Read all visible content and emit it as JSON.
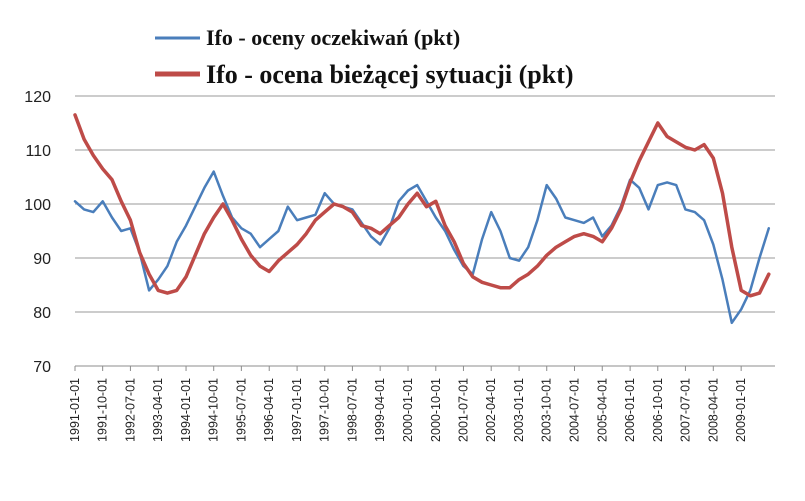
{
  "chart_data": {
    "type": "line",
    "title": "",
    "xlabel": "",
    "ylabel": "",
    "ylim": [
      70,
      120
    ],
    "yticks": [
      70,
      80,
      90,
      100,
      110,
      120
    ],
    "grid": true,
    "legend_position": "top",
    "x_tick_labels": [
      "1991-01-01",
      "1991-10-01",
      "1992-07-01",
      "1993-04-01",
      "1994-01-01",
      "1994-10-01",
      "1995-07-01",
      "1996-04-01",
      "1997-01-01",
      "1997-10-01",
      "1998-07-01",
      "1999-04-01",
      "2000-01-01",
      "2000-10-01",
      "2001-07-01",
      "2002-04-01",
      "2003-01-01",
      "2003-10-01",
      "2004-07-01",
      "2005-04-01",
      "2006-01-01",
      "2006-10-01",
      "2007-07-01",
      "2008-04-01",
      "2009-01-01"
    ],
    "series": [
      {
        "name": "Ifo - oceny oczekiwań (pkt)",
        "color": "#4a7ebb",
        "points": [
          [
            "1991-01-01",
            100.5
          ],
          [
            "1991-04-01",
            99.0
          ],
          [
            "1991-07-01",
            98.5
          ],
          [
            "1991-10-01",
            100.5
          ],
          [
            "1992-01-01",
            97.5
          ],
          [
            "1992-04-01",
            95.0
          ],
          [
            "1992-07-01",
            95.5
          ],
          [
            "1992-10-01",
            91.0
          ],
          [
            "1993-01-01",
            84.0
          ],
          [
            "1993-04-01",
            86.0
          ],
          [
            "1993-07-01",
            88.5
          ],
          [
            "1993-10-01",
            93.0
          ],
          [
            "1994-01-01",
            96.0
          ],
          [
            "1994-04-01",
            99.5
          ],
          [
            "1994-07-01",
            103.0
          ],
          [
            "1994-10-01",
            106.0
          ],
          [
            "1995-01-01",
            101.5
          ],
          [
            "1995-04-01",
            97.5
          ],
          [
            "1995-07-01",
            95.5
          ],
          [
            "1995-10-01",
            94.5
          ],
          [
            "1996-01-01",
            92.0
          ],
          [
            "1996-04-01",
            93.5
          ],
          [
            "1996-07-01",
            95.0
          ],
          [
            "1996-10-01",
            99.5
          ],
          [
            "1997-01-01",
            97.0
          ],
          [
            "1997-04-01",
            97.5
          ],
          [
            "1997-07-01",
            98.0
          ],
          [
            "1997-10-01",
            102.0
          ],
          [
            "1998-01-01",
            100.0
          ],
          [
            "1998-04-01",
            99.5
          ],
          [
            "1998-07-01",
            99.0
          ],
          [
            "1998-10-01",
            96.5
          ],
          [
            "1999-01-01",
            94.0
          ],
          [
            "1999-04-01",
            92.5
          ],
          [
            "1999-07-01",
            95.5
          ],
          [
            "1999-10-01",
            100.5
          ],
          [
            "2000-01-01",
            102.5
          ],
          [
            "2000-04-01",
            103.5
          ],
          [
            "2000-07-01",
            100.5
          ],
          [
            "2000-10-01",
            97.5
          ],
          [
            "2001-01-01",
            95.0
          ],
          [
            "2001-04-01",
            91.5
          ],
          [
            "2001-07-01",
            88.5
          ],
          [
            "2001-10-01",
            87.0
          ],
          [
            "2002-01-01",
            93.5
          ],
          [
            "2002-04-01",
            98.5
          ],
          [
            "2002-07-01",
            95.0
          ],
          [
            "2002-10-01",
            90.0
          ],
          [
            "2003-01-01",
            89.5
          ],
          [
            "2003-04-01",
            92.0
          ],
          [
            "2003-07-01",
            97.0
          ],
          [
            "2003-10-01",
            103.5
          ],
          [
            "2004-01-01",
            101.0
          ],
          [
            "2004-04-01",
            97.5
          ],
          [
            "2004-07-01",
            97.0
          ],
          [
            "2004-10-01",
            96.5
          ],
          [
            "2005-01-01",
            97.5
          ],
          [
            "2005-04-01",
            94.0
          ],
          [
            "2005-07-01",
            96.0
          ],
          [
            "2005-10-01",
            99.5
          ],
          [
            "2006-01-01",
            104.5
          ],
          [
            "2006-04-01",
            103.0
          ],
          [
            "2006-07-01",
            99.0
          ],
          [
            "2006-10-01",
            103.5
          ],
          [
            "2007-01-01",
            104.0
          ],
          [
            "2007-04-01",
            103.5
          ],
          [
            "2007-07-01",
            99.0
          ],
          [
            "2007-10-01",
            98.5
          ],
          [
            "2008-01-01",
            97.0
          ],
          [
            "2008-04-01",
            92.5
          ],
          [
            "2008-07-01",
            86.0
          ],
          [
            "2008-10-01",
            78.0
          ],
          [
            "2009-01-01",
            80.5
          ],
          [
            "2009-04-01",
            84.0
          ],
          [
            "2009-07-01",
            90.0
          ],
          [
            "2009-10-01",
            95.5
          ]
        ]
      },
      {
        "name": "Ifo - ocena bieżącej sytuacji (pkt)",
        "color": "#be4b48",
        "points": [
          [
            "1991-01-01",
            116.5
          ],
          [
            "1991-04-01",
            112.0
          ],
          [
            "1991-07-01",
            109.0
          ],
          [
            "1991-10-01",
            106.5
          ],
          [
            "1992-01-01",
            104.5
          ],
          [
            "1992-04-01",
            100.5
          ],
          [
            "1992-07-01",
            97.0
          ],
          [
            "1992-10-01",
            91.0
          ],
          [
            "1993-01-01",
            87.0
          ],
          [
            "1993-04-01",
            84.0
          ],
          [
            "1993-07-01",
            83.5
          ],
          [
            "1993-10-01",
            84.0
          ],
          [
            "1994-01-01",
            86.5
          ],
          [
            "1994-04-01",
            90.5
          ],
          [
            "1994-07-01",
            94.5
          ],
          [
            "1994-10-01",
            97.5
          ],
          [
            "1995-01-01",
            100.0
          ],
          [
            "1995-04-01",
            97.0
          ],
          [
            "1995-07-01",
            93.5
          ],
          [
            "1995-10-01",
            90.5
          ],
          [
            "1996-01-01",
            88.5
          ],
          [
            "1996-04-01",
            87.5
          ],
          [
            "1996-07-01",
            89.5
          ],
          [
            "1996-10-01",
            91.0
          ],
          [
            "1997-01-01",
            92.5
          ],
          [
            "1997-04-01",
            94.5
          ],
          [
            "1997-07-01",
            97.0
          ],
          [
            "1997-10-01",
            98.5
          ],
          [
            "1998-01-01",
            100.0
          ],
          [
            "1998-04-01",
            99.5
          ],
          [
            "1998-07-01",
            98.5
          ],
          [
            "1998-10-01",
            96.0
          ],
          [
            "1999-01-01",
            95.5
          ],
          [
            "1999-04-01",
            94.5
          ],
          [
            "1999-07-01",
            96.0
          ],
          [
            "1999-10-01",
            97.5
          ],
          [
            "2000-01-01",
            100.0
          ],
          [
            "2000-04-01",
            102.0
          ],
          [
            "2000-07-01",
            99.5
          ],
          [
            "2000-10-01",
            100.5
          ],
          [
            "2001-01-01",
            96.0
          ],
          [
            "2001-04-01",
            93.0
          ],
          [
            "2001-07-01",
            89.0
          ],
          [
            "2001-10-01",
            86.5
          ],
          [
            "2002-01-01",
            85.5
          ],
          [
            "2002-04-01",
            85.0
          ],
          [
            "2002-07-01",
            84.5
          ],
          [
            "2002-10-01",
            84.5
          ],
          [
            "2003-01-01",
            86.0
          ],
          [
            "2003-04-01",
            87.0
          ],
          [
            "2003-07-01",
            88.5
          ],
          [
            "2003-10-01",
            90.5
          ],
          [
            "2004-01-01",
            92.0
          ],
          [
            "2004-04-01",
            93.0
          ],
          [
            "2004-07-01",
            94.0
          ],
          [
            "2004-10-01",
            94.5
          ],
          [
            "2005-01-01",
            94.0
          ],
          [
            "2005-04-01",
            93.0
          ],
          [
            "2005-07-01",
            95.5
          ],
          [
            "2005-10-01",
            99.0
          ],
          [
            "2006-01-01",
            104.0
          ],
          [
            "2006-04-01",
            108.0
          ],
          [
            "2006-07-01",
            111.5
          ],
          [
            "2006-10-01",
            115.0
          ],
          [
            "2007-01-01",
            112.5
          ],
          [
            "2007-04-01",
            111.5
          ],
          [
            "2007-07-01",
            110.5
          ],
          [
            "2007-10-01",
            110.0
          ],
          [
            "2008-01-01",
            111.0
          ],
          [
            "2008-04-01",
            108.5
          ],
          [
            "2008-07-01",
            102.0
          ],
          [
            "2008-10-01",
            92.0
          ],
          [
            "2009-01-01",
            84.0
          ],
          [
            "2009-04-01",
            83.0
          ],
          [
            "2009-07-01",
            83.5
          ],
          [
            "2009-10-01",
            87.0
          ]
        ]
      }
    ]
  }
}
